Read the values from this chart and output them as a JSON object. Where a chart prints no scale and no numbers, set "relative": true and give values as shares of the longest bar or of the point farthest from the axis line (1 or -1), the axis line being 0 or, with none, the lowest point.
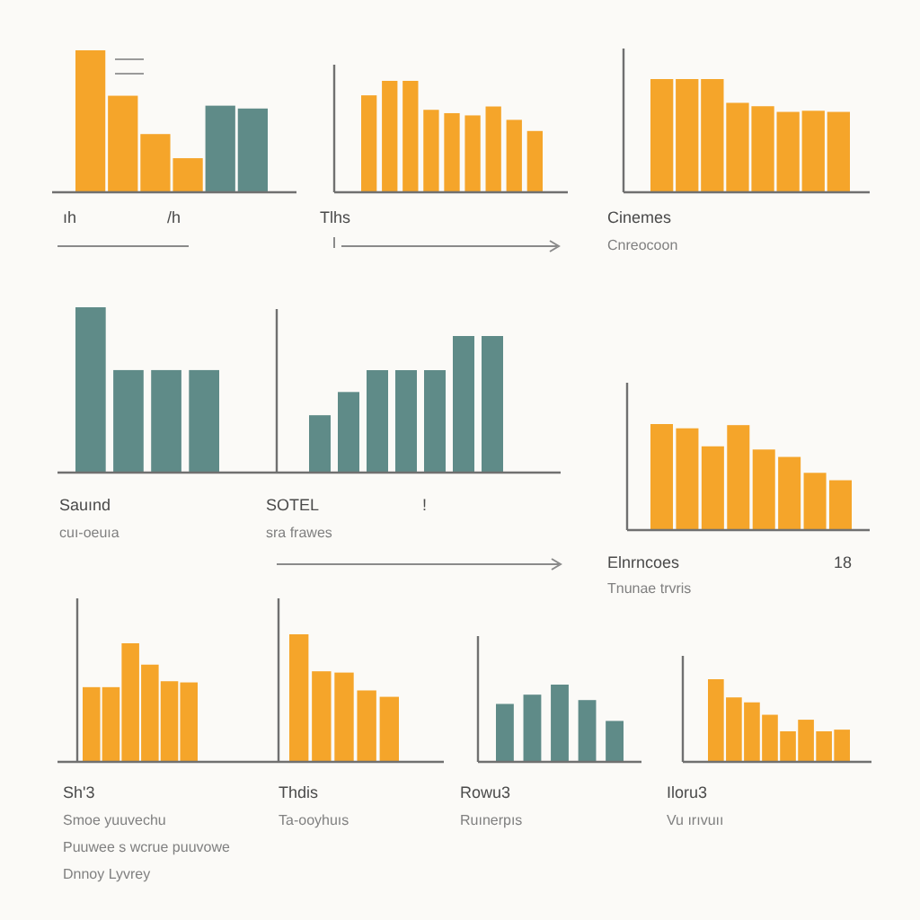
{
  "chart_data": [
    {
      "type": "bar",
      "relative": true,
      "categories": [
        null,
        null,
        null,
        null,
        null,
        null
      ],
      "values": [
        1,
        0.68,
        0.41,
        0.24,
        0.61,
        0.59
      ],
      "colors": [
        "#f5a52a",
        "#f5a52a",
        "#f5a52a",
        "#f5a52a",
        "#5f8b88",
        "#5f8b88"
      ],
      "annotations": [
        "ıh",
        "/h"
      ]
    },
    {
      "type": "bar",
      "relative": true,
      "categories": [
        null,
        null,
        null,
        null,
        null,
        null,
        null,
        null,
        null
      ],
      "values": [
        0.87,
        1,
        1,
        0.74,
        0.71,
        0.69,
        0.77,
        0.65,
        0.55
      ],
      "color": "#f5a52a",
      "annotations": [
        "Tlhs"
      ]
    },
    {
      "type": "bar",
      "relative": true,
      "categories": [
        null,
        null,
        null,
        null,
        null,
        null,
        null,
        null
      ],
      "values": [
        1,
        1,
        1,
        0.79,
        0.76,
        0.71,
        0.72,
        0.71
      ],
      "color": "#f5a52a",
      "annotations": [
        "Cinemes",
        "Cnreocoon"
      ]
    },
    {
      "type": "bar",
      "relative": true,
      "categories": [
        null,
        null,
        null,
        null
      ],
      "values": [
        1,
        0.62,
        0.62,
        0.62
      ],
      "color": "#5f8b88",
      "annotations": [
        "Sauınd",
        "cuı-oeuıa"
      ]
    },
    {
      "type": "bar",
      "relative": true,
      "categories": [
        null,
        null,
        null,
        null,
        null,
        null,
        null
      ],
      "values": [
        0.42,
        0.59,
        0.75,
        0.75,
        0.75,
        1,
        1
      ],
      "color": "#5f8b88",
      "annotations": [
        "SOTEL",
        "sra frawes",
        "!"
      ]
    },
    {
      "type": "bar",
      "relative": true,
      "categories": [
        null,
        null,
        null,
        null,
        null,
        null,
        null,
        null
      ],
      "values": [
        1,
        0.96,
        0.79,
        0.99,
        0.76,
        0.69,
        0.54,
        0.47
      ],
      "color": "#f5a52a",
      "annotations": [
        "Elnrncoes",
        "Tnunae trvris",
        "18"
      ]
    },
    {
      "type": "bar",
      "relative": true,
      "categories": [
        null,
        null,
        null,
        null,
        null,
        null
      ],
      "values": [
        0.63,
        0.63,
        1,
        0.82,
        0.68,
        0.67
      ],
      "color": "#f5a52a",
      "annotations": [
        "Sh'3",
        "Smoe yuuvechu",
        "Puuwee s wcrue puuvowe",
        "Dnnoy Lyvrey"
      ]
    },
    {
      "type": "bar",
      "relative": true,
      "categories": [
        null,
        null,
        null,
        null,
        null
      ],
      "values": [
        1,
        0.71,
        0.7,
        0.56,
        0.51
      ],
      "color": "#f5a52a",
      "annotations": [
        "Thdis",
        "Ta-ooyhuıs"
      ]
    },
    {
      "type": "bar",
      "relative": true,
      "categories": [
        null,
        null,
        null,
        null,
        null
      ],
      "values": [
        0.75,
        0.87,
        1,
        0.8,
        0.53
      ],
      "color": "#5f8b88",
      "annotations": [
        "Rowu3",
        "Ruınerpıs"
      ]
    },
    {
      "type": "bar",
      "relative": true,
      "categories": [
        null,
        null,
        null,
        null,
        null,
        null,
        null,
        null
      ],
      "values": [
        1,
        0.78,
        0.72,
        0.57,
        0.37,
        0.51,
        0.37,
        0.39
      ],
      "color": "#f5a52a",
      "annotations": [
        "Iloru3",
        "Vu ırıvuıı"
      ]
    }
  ]
}
